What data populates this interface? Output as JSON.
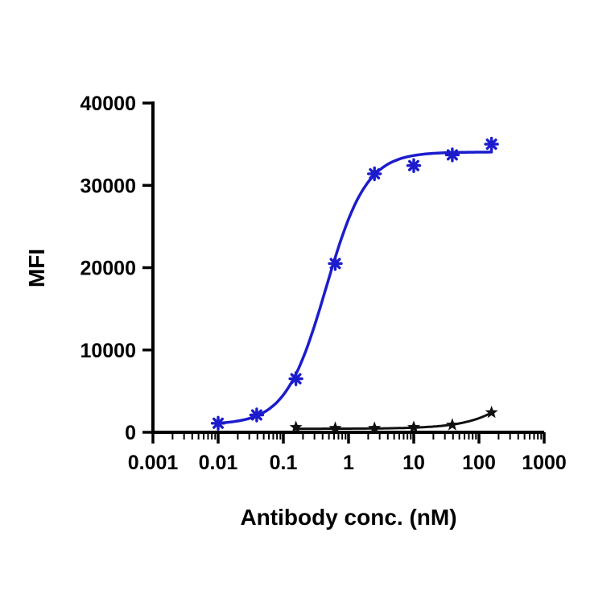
{
  "figure": {
    "background": "#ffffff",
    "ink_color": "#000000"
  },
  "chart_data": {
    "type": "line",
    "title": "",
    "xlabel": "Antibody conc. (nM)",
    "ylabel": "MFI",
    "x_scale": "log",
    "xlim": [
      0.001,
      1000
    ],
    "ylim": [
      0,
      40000
    ],
    "x_ticks": [
      0.001,
      0.01,
      0.1,
      1,
      10,
      100,
      1000
    ],
    "x_tick_labels": [
      "0.001",
      "0.01",
      "0.1",
      "1",
      "10",
      "100",
      "1000"
    ],
    "y_ticks": [
      0,
      10000,
      20000,
      30000,
      40000
    ],
    "y_tick_labels": [
      "0",
      "10000",
      "20000",
      "30000",
      "40000"
    ],
    "grid": false,
    "legend": "none",
    "series": [
      {
        "name": "Blue (asterisk markers)",
        "color": "#1c1ccd",
        "marker": "asterisk",
        "line_width": 3.5,
        "x": [
          0.01,
          0.039,
          0.156,
          0.625,
          2.5,
          10,
          39,
          156
        ],
        "y": [
          1100,
          2100,
          6500,
          20500,
          31400,
          32400,
          33700,
          35000
        ],
        "fit": {
          "model": "4PL",
          "bottom": 950,
          "top": 34050,
          "ec50": 0.45,
          "hill": 1.4,
          "x_range": [
            0.01,
            156
          ]
        }
      },
      {
        "name": "Black (star markers)",
        "color": "#111111",
        "marker": "star",
        "line_width": 3,
        "x": [
          0.156,
          0.625,
          2.5,
          10,
          39,
          156
        ],
        "y": [
          600,
          500,
          500,
          600,
          900,
          2400
        ],
        "fit": {
          "model": "4PL",
          "bottom": 430,
          "top": 40000,
          "ec50": 3000,
          "hill": 1.0,
          "x_range": [
            0.156,
            156
          ]
        }
      }
    ]
  }
}
